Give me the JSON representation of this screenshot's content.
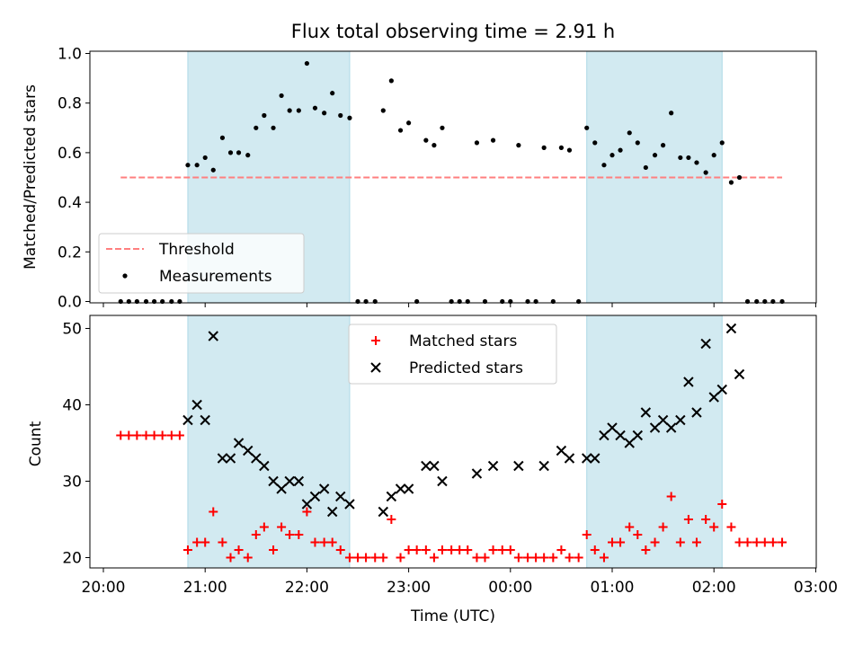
{
  "title": "Flux total observing time = 2.91 h",
  "xlabel": "Time (UTC)",
  "x_ticks": [
    "20:00",
    "21:00",
    "22:00",
    "23:00",
    "00:00",
    "01:00",
    "02:00",
    "03:00"
  ],
  "colors": {
    "threshold": "#ff7f7f",
    "band": "#add8e6",
    "matched": "#ff0000",
    "predicted": "#000000",
    "measurement": "#000000"
  },
  "chart_data": [
    {
      "type": "scatter",
      "ylabel": "Matched/Predicted stars",
      "xlim": [
        -0.1,
        6.9
      ],
      "ylim": [
        0.0,
        1.0
      ],
      "y_ticks": [
        "0.0",
        "0.2",
        "0.4",
        "0.6",
        "0.8",
        "1.0"
      ],
      "legend_position": "lower-left",
      "shaded_intervals": [
        [
          0.83,
          2.42
        ],
        [
          4.75,
          6.08
        ]
      ],
      "threshold": {
        "name": "Threshold",
        "y": 0.5,
        "x_range": [
          0.17,
          6.67
        ]
      },
      "measurements": {
        "name": "Measurements",
        "x": [
          0.17,
          0.25,
          0.33,
          0.42,
          0.5,
          0.58,
          0.67,
          0.75,
          0.83,
          0.92,
          1.0,
          1.08,
          1.17,
          1.25,
          1.33,
          1.42,
          1.5,
          1.58,
          1.67,
          1.75,
          1.83,
          1.92,
          2.0,
          2.08,
          2.17,
          2.25,
          2.33,
          2.42,
          2.5,
          2.58,
          2.67,
          2.75,
          2.83,
          2.92,
          3.0,
          3.08,
          3.17,
          3.25,
          3.33,
          3.42,
          3.5,
          3.58,
          3.67,
          3.75,
          3.83,
          3.92,
          4.0,
          4.08,
          4.17,
          4.25,
          4.33,
          4.42,
          4.5,
          4.58,
          4.67,
          4.75,
          4.83,
          4.92,
          5.0,
          5.08,
          5.17,
          5.25,
          5.33,
          5.42,
          5.5,
          5.58,
          5.67,
          5.75,
          5.83,
          5.92,
          6.0,
          6.08,
          6.17,
          6.25,
          6.33,
          6.42,
          6.5,
          6.58,
          6.67
        ],
        "y": [
          0,
          0,
          0,
          0,
          0,
          0,
          0,
          0,
          0.55,
          0.55,
          0.58,
          0.53,
          0.66,
          0.6,
          0.6,
          0.59,
          0.7,
          0.75,
          0.7,
          0.83,
          0.77,
          0.77,
          0.96,
          0.78,
          0.76,
          0.84,
          0.75,
          0.74,
          0,
          0,
          0,
          0.77,
          0.89,
          0.69,
          0.72,
          0,
          0.65,
          0.63,
          0.7,
          0,
          0,
          0,
          0.64,
          0,
          0.65,
          0,
          0,
          0.63,
          0,
          0,
          0.62,
          0,
          0.62,
          0.61,
          0,
          0.7,
          0.64,
          0.55,
          0.59,
          0.61,
          0.68,
          0.64,
          0.54,
          0.59,
          0.63,
          0.76,
          0.58,
          0.58,
          0.56,
          0.52,
          0.59,
          0.64,
          0.48,
          0.5,
          0,
          0,
          0,
          0,
          0
        ]
      }
    },
    {
      "type": "scatter",
      "ylabel": "Count",
      "xlim": [
        -0.1,
        6.9
      ],
      "ylim": [
        19,
        51.5
      ],
      "y_ticks": [
        "20",
        "30",
        "40",
        "50"
      ],
      "legend_position": "upper-center",
      "shaded_intervals": [
        [
          0.83,
          2.42
        ],
        [
          4.75,
          6.08
        ]
      ],
      "series": [
        {
          "name": "Matched stars",
          "marker": "+",
          "x": [
            0.17,
            0.25,
            0.33,
            0.42,
            0.5,
            0.58,
            0.67,
            0.75,
            0.83,
            0.92,
            1.0,
            1.08,
            1.17,
            1.25,
            1.33,
            1.42,
            1.5,
            1.58,
            1.67,
            1.75,
            1.83,
            1.92,
            2.0,
            2.08,
            2.17,
            2.25,
            2.33,
            2.42,
            2.5,
            2.58,
            2.67,
            2.75,
            2.83,
            2.92,
            3.0,
            3.08,
            3.17,
            3.25,
            3.33,
            3.42,
            3.5,
            3.58,
            3.67,
            3.75,
            3.83,
            3.92,
            4.0,
            4.08,
            4.17,
            4.25,
            4.33,
            4.42,
            4.5,
            4.58,
            4.67,
            4.75,
            4.83,
            4.92,
            5.0,
            5.08,
            5.17,
            5.25,
            5.33,
            5.42,
            5.5,
            5.58,
            5.67,
            5.75,
            5.83,
            5.92,
            6.0,
            6.08,
            6.17,
            6.25,
            6.33,
            6.42,
            6.5,
            6.58,
            6.67
          ],
          "y": [
            36,
            36,
            36,
            36,
            36,
            36,
            36,
            36,
            21,
            22,
            22,
            26,
            22,
            20,
            21,
            20,
            23,
            24,
            21,
            24,
            23,
            23,
            26,
            22,
            22,
            22,
            21,
            20,
            20,
            20,
            20,
            20,
            25,
            20,
            21,
            21,
            21,
            20,
            21,
            21,
            21,
            21,
            20,
            20,
            21,
            21,
            21,
            20,
            20,
            20,
            20,
            20,
            21,
            20,
            20,
            23,
            21,
            20,
            22,
            22,
            24,
            23,
            21,
            22,
            24,
            28,
            22,
            25,
            22,
            25,
            24,
            27,
            24,
            22,
            22,
            22,
            22,
            22,
            22
          ]
        },
        {
          "name": "Predicted stars",
          "marker": "x",
          "x": [
            0.83,
            0.92,
            1.0,
            1.08,
            1.17,
            1.25,
            1.33,
            1.42,
            1.5,
            1.58,
            1.67,
            1.75,
            1.83,
            1.92,
            2.0,
            2.08,
            2.17,
            2.25,
            2.33,
            2.42,
            2.75,
            2.83,
            2.92,
            3.0,
            3.17,
            3.25,
            3.33,
            3.67,
            3.83,
            4.08,
            4.33,
            4.5,
            4.58,
            4.75,
            4.83,
            4.92,
            5.0,
            5.08,
            5.17,
            5.25,
            5.33,
            5.42,
            5.5,
            5.58,
            5.67,
            5.75,
            5.83,
            5.92,
            6.0,
            6.08,
            6.17,
            6.25
          ],
          "y": [
            38,
            40,
            38,
            49,
            33,
            33,
            35,
            34,
            33,
            32,
            30,
            29,
            30,
            30,
            27,
            28,
            29,
            26,
            28,
            27,
            26,
            28,
            29,
            29,
            32,
            32,
            30,
            31,
            32,
            32,
            32,
            34,
            33,
            33,
            33,
            36,
            37,
            36,
            35,
            36,
            39,
            37,
            38,
            37,
            38,
            43,
            39,
            48,
            41,
            42,
            50,
            44
          ]
        }
      ]
    }
  ]
}
